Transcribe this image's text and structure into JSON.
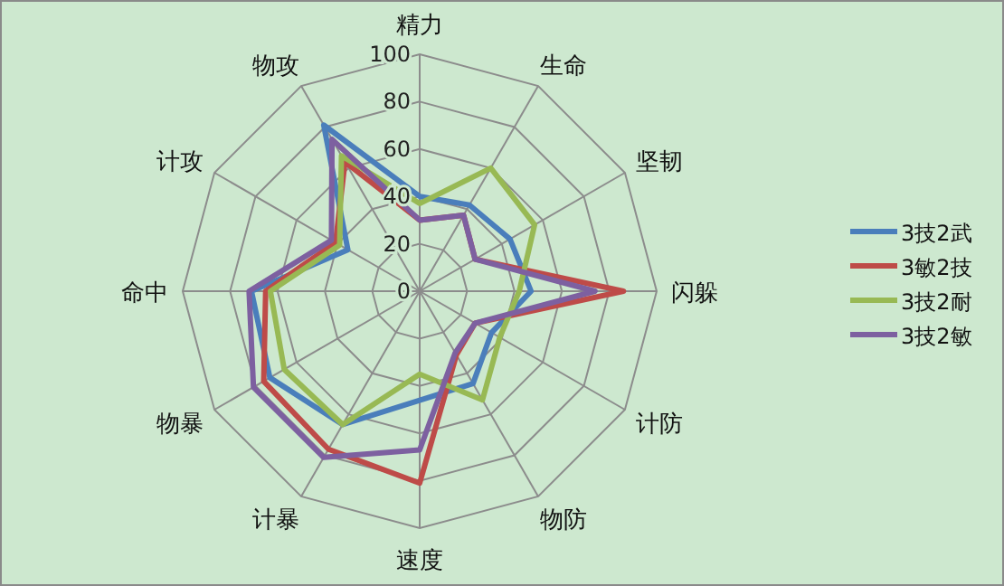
{
  "chart_data": {
    "type": "radar",
    "categories": [
      "精力",
      "生命",
      "坚韧",
      "闪躲",
      "计防",
      "物防",
      "速度",
      "计暴",
      "物暴",
      "命中",
      "计攻",
      "物攻"
    ],
    "series": [
      {
        "name": "3技2武",
        "color": "#4a7ebb",
        "values": [
          40,
          42,
          44,
          47,
          35,
          45,
          46,
          65,
          73,
          71,
          35,
          81
        ]
      },
      {
        "name": "3敏2技",
        "color": "#be4b48",
        "values": [
          30,
          37,
          27,
          86,
          27,
          31,
          81,
          77,
          76,
          65,
          41,
          63
        ]
      },
      {
        "name": "3技2耐",
        "color": "#98b954",
        "values": [
          37,
          60,
          56,
          42,
          39,
          53,
          35,
          65,
          66,
          63,
          39,
          66
        ]
      },
      {
        "name": "3技2敏",
        "color": "#7d60a0",
        "values": [
          30,
          37,
          27,
          74,
          27,
          30,
          67,
          81,
          81,
          72,
          43,
          74
        ]
      }
    ],
    "ylim": [
      0,
      100
    ],
    "yticks": [
      0,
      20,
      40,
      60,
      80,
      100
    ],
    "grid": true,
    "legend": "right"
  }
}
